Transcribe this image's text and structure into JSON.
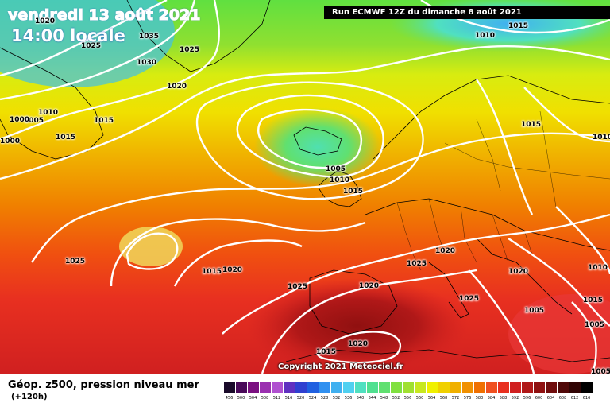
{
  "header": {
    "date": "vendredi 13 août 2021",
    "time": "14:00 locale",
    "run": "Run ECMWF 12Z du dimanche 8 août 2021"
  },
  "isobar_labels": [
    "1020",
    "1025",
    "1035",
    "1030",
    "1025",
    "1020",
    "1010",
    "1005",
    "1015",
    "1015",
    "1000",
    "1000",
    "1005",
    "1010",
    "1015",
    "1025",
    "1015",
    "1020",
    "1025",
    "1020",
    "1025",
    "1020",
    "1025",
    "1015",
    "1020",
    "1015",
    "1020",
    "1005",
    "1010",
    "1010",
    "1015",
    "1010",
    "1015",
    "1005",
    "1005"
  ],
  "copyright": "Copyright 2021 Meteociel.fr",
  "footer": {
    "title": "Géop. z500, pression niveau mer",
    "subtitle": "(+120h)"
  },
  "legend": {
    "ticks": [
      "456",
      "500",
      "504",
      "508",
      "512",
      "516",
      "520",
      "524",
      "528",
      "532",
      "536",
      "540",
      "544",
      "548",
      "552",
      "556",
      "560",
      "564",
      "568",
      "572",
      "576",
      "580",
      "584",
      "588",
      "592",
      "596",
      "600",
      "604",
      "608",
      "612",
      "616"
    ],
    "colors": [
      "#1a0a2a",
      "#4a0a5a",
      "#7a1080",
      "#9a30b0",
      "#b050d0",
      "#6030c0",
      "#3040d0",
      "#2060e0",
      "#3090f0",
      "#40b0f0",
      "#50d0f0",
      "#50e0c0",
      "#50e090",
      "#60e070",
      "#80e040",
      "#a0e030",
      "#c8e820",
      "#f0f000",
      "#f0d000",
      "#f0b000",
      "#f09000",
      "#f07000",
      "#f05020",
      "#e83020",
      "#d02020",
      "#b01818",
      "#901010",
      "#700c0c",
      "#500808",
      "#300404",
      "#000000"
    ]
  },
  "colors": {
    "isobar": "#ffffff",
    "land_border": "#000000"
  }
}
